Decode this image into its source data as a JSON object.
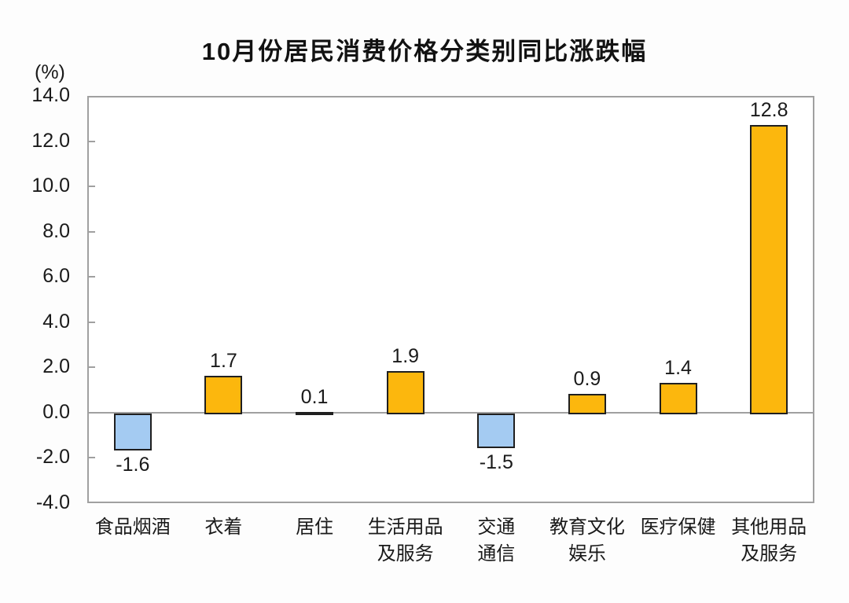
{
  "page": {
    "background": "#fdfdfd"
  },
  "chart_data": {
    "type": "bar",
    "title": "10月份居民消费价格分类别同比涨跌幅",
    "unit_label": "(%)",
    "categories": [
      "食品烟酒",
      "衣着",
      "居住",
      "生活用品及服务",
      "交通通信",
      "教育文化娱乐",
      "医疗保健",
      "其他用品及服务"
    ],
    "category_label_lines": [
      [
        "食品烟酒"
      ],
      [
        "衣着"
      ],
      [
        "居住"
      ],
      [
        "生活用品",
        "及服务"
      ],
      [
        "交通",
        "通信"
      ],
      [
        "教育文化",
        "娱乐"
      ],
      [
        "医疗保健"
      ],
      [
        "其他用品",
        "及服务"
      ]
    ],
    "values": [
      -1.6,
      1.7,
      0.1,
      1.9,
      -1.5,
      0.9,
      1.4,
      12.8
    ],
    "value_labels": [
      "-1.6",
      "1.7",
      "0.1",
      "1.9",
      "-1.5",
      "0.9",
      "1.4",
      "12.8"
    ],
    "ylim": [
      -4.0,
      14.0
    ],
    "ytick_step": 2.0,
    "ytick_labels": [
      "14.0",
      "12.0",
      "10.0",
      "8.0",
      "6.0",
      "4.0",
      "2.0",
      "0.0",
      "-2.0",
      "-4.0"
    ],
    "ytick_values": [
      14,
      12,
      10,
      8,
      6,
      4,
      2,
      0,
      -2,
      -4
    ],
    "grid": "off",
    "legend": "none",
    "colors": {
      "positive_bar": "#fcb70d",
      "negative_bar": "#a4cbf2",
      "bar_outline": "#1f1f1f",
      "axis_line": "#a0a0a0",
      "text": "#1a1a1a"
    }
  }
}
